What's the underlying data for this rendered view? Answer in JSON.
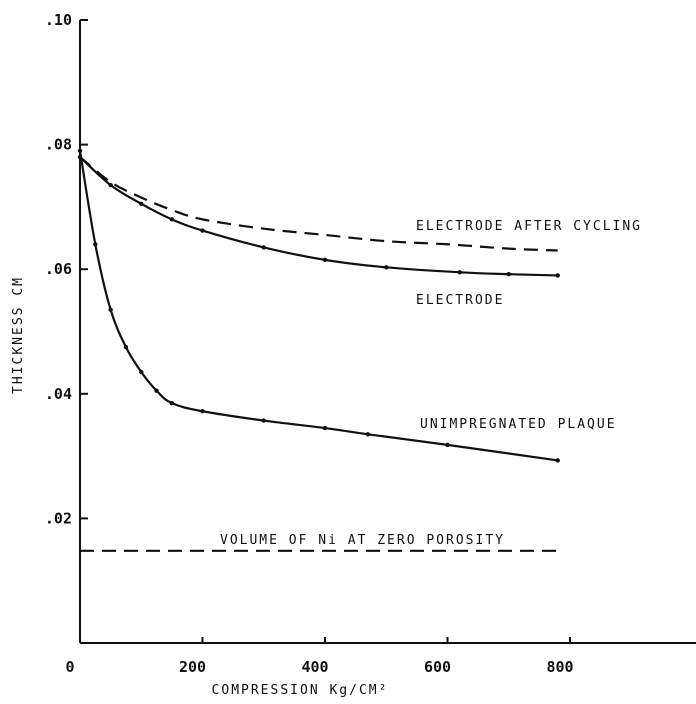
{
  "chart_data": {
    "type": "line",
    "title": "",
    "xlabel": "COMPRESSION Kg/CM²",
    "ylabel": "THICKNESS CM",
    "xlim": [
      0,
      1000
    ],
    "ylim": [
      0,
      0.1
    ],
    "grid": false,
    "x_ticks": [
      {
        "value": 0,
        "label": "0"
      },
      {
        "value": 200,
        "label": "200"
      },
      {
        "value": 400,
        "label": "400"
      },
      {
        "value": 600,
        "label": "600"
      },
      {
        "value": 800,
        "label": "800"
      }
    ],
    "y_ticks": [
      {
        "value": 0.02,
        "label": ".02"
      },
      {
        "value": 0.04,
        "label": ".04"
      },
      {
        "value": 0.06,
        "label": ".06"
      },
      {
        "value": 0.08,
        "label": ".08"
      },
      {
        "value": 0.1,
        "label": ".10"
      }
    ],
    "series": [
      {
        "name": "ELECTRODE AFTER CYCLING",
        "style": "dashed",
        "markers": false,
        "x": [
          0,
          50,
          100,
          150,
          200,
          300,
          400,
          500,
          600,
          700,
          780
        ],
        "y": [
          0.078,
          0.074,
          0.0715,
          0.0695,
          0.068,
          0.0665,
          0.0655,
          0.0645,
          0.064,
          0.0633,
          0.063
        ]
      },
      {
        "name": "ELECTRODE",
        "style": "solid",
        "markers": true,
        "x": [
          0,
          50,
          100,
          150,
          200,
          300,
          400,
          500,
          620,
          700,
          780
        ],
        "y": [
          0.078,
          0.0735,
          0.0705,
          0.068,
          0.0662,
          0.0635,
          0.0615,
          0.0603,
          0.0595,
          0.0592,
          0.059
        ]
      },
      {
        "name": "UNIMPREGNATED PLAQUE",
        "style": "solid",
        "markers": true,
        "x": [
          0,
          25,
          50,
          75,
          100,
          125,
          150,
          200,
          300,
          400,
          470,
          600,
          780
        ],
        "y": [
          0.079,
          0.064,
          0.0535,
          0.0475,
          0.0435,
          0.0405,
          0.0385,
          0.0372,
          0.0357,
          0.0345,
          0.0335,
          0.0318,
          0.0293
        ]
      },
      {
        "name": "VOLUME OF Ni AT ZERO POROSITY",
        "style": "dashed",
        "markers": false,
        "x": [
          0,
          780
        ],
        "y": [
          0.0148,
          0.0148
        ]
      }
    ],
    "annotations": [
      {
        "text": "ELECTRODE AFTER CYCLING",
        "series": 0
      },
      {
        "text": "ELECTRODE",
        "series": 1
      },
      {
        "text": "UNIMPREGNATED PLAQUE",
        "series": 2
      },
      {
        "text": "VOLUME OF Ni AT ZERO POROSITY",
        "series": 3
      }
    ]
  }
}
